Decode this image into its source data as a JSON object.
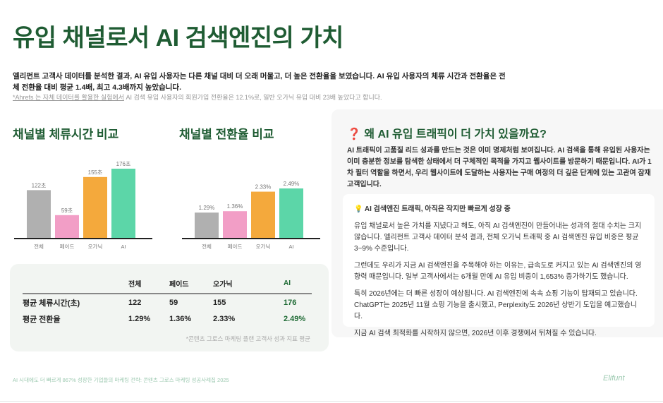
{
  "title": "유입 채널로서 AI 검색엔진의 가치",
  "intro": "엘리펀트 고객사 데이터를 분석한 결과, AI 유입 사용자는 다른 채널 대비 더 오래 머물고, 더 높은 전환율을 보였습니다. AI 유입 사용자의 체류 시간과 전환율은 전체 전환율 대비 평균 1.4배, 최고 4.3배까지 높았습니다.",
  "note_link": "*Ahrefs 는 자체 데이터를 활용한 실험에서",
  "note_rest": " AI 검색 유입 사용자의 회원가입 전환율은 12.1%로, 일반 오가닉 유입 대비 23배 높았다고 합니다.",
  "chart_data": [
    {
      "type": "bar",
      "title": "채널별 체류시간 비교",
      "categories": [
        "전체",
        "페이드",
        "오가닉",
        "AI"
      ],
      "values": [
        122,
        59,
        155,
        176
      ],
      "labels": [
        "122초",
        "59초",
        "155초",
        "176초"
      ],
      "colors": [
        "#b0b0b0",
        "#f29ec6",
        "#f4a93c",
        "#5cd6a8"
      ],
      "ylim": [
        0,
        176
      ]
    },
    {
      "type": "bar",
      "title": "채널별 전환율 비교",
      "categories": [
        "전체",
        "페이드",
        "오가닉",
        "AI"
      ],
      "values": [
        1.29,
        1.36,
        2.33,
        2.49
      ],
      "labels": [
        "1.29%",
        "1.36%",
        "2.33%",
        "2.49%"
      ],
      "colors": [
        "#b0b0b0",
        "#f29ec6",
        "#f4a93c",
        "#5cd6a8"
      ],
      "ylim": [
        0,
        2.49
      ]
    }
  ],
  "table": {
    "headers": [
      "",
      "전체",
      "페이드",
      "오가닉",
      "AI"
    ],
    "rows": [
      [
        "평균 체류시간(초)",
        "122",
        "59",
        "155",
        "176"
      ],
      [
        "평균 전환율",
        "1.29%",
        "1.36%",
        "2.33%",
        "2.49%"
      ]
    ],
    "note": "*콘텐츠 그로스 마케팅 플랜 고객사 성과 지표 평균"
  },
  "panel": {
    "title": "❓ 왜 AI 유입 트래픽이 더 가치 있을까요?",
    "body": "AI 트래픽이 고품질 리드 성과를 만드는 것은 이미 명제처럼 보여집니다. AI 검색을 통해 유입된 사용자는 이미 충분한 정보를 탐색한 상태에서 더 구체적인 목적을 가지고 웹사이트를 방문하기 때문입니다. AI가 1차 필터 역할을 하면서, 우리 웹사이트에 도달하는 사용자는 구매 여정의 더 깊은 단계에 있는 고관여 잠재고객입니다.",
    "card_title": "💡 AI 검색엔진 트래픽, 아직은 작지만 빠르게 성장 중",
    "paragraphs": [
      "유입 채널로서 높은 가치를 지녔다고 해도, 아직 AI 검색엔진이 만들어내는 성과의 절대 수치는 크지 않습니다. 엘리펀트 고객사 데이터 분석 결과, 전체 오가닉 트래픽 중 AI 검색엔진 유입 비중은 평균 3~9% 수준입니다.",
      "그런데도 우리가 지금 AI 검색엔진을 주목해야 하는 이유는, 급속도로 커지고 있는 AI 검색엔진의 영향력 때문입니다. 일부 고객사에서는 6개월 만에 AI 유입 비중이 1,653% 증가하기도 했습니다.",
      "특히 2026년에는 더 빠른 성장이 예상됩니다. AI 검색엔진에 속속 쇼핑 기능이 탑재되고 있습니다. ChatGPT는 2025년 11월 쇼핑 기능을 출시했고, Perplexity도 2026년 상반기 도입을 예고했습니다.",
      "지금 AI 검색 최적화를 시작하지 않으면, 2026년 이후 경쟁에서 뒤쳐질 수 있습니다."
    ]
  },
  "footer": "AI 시대에도 더 빠르게 867% 성장한 기업들의 마케팅 전략: 콘텐츠 그로스 마케팅 성공사례집 2025",
  "logo": "Elifunt"
}
